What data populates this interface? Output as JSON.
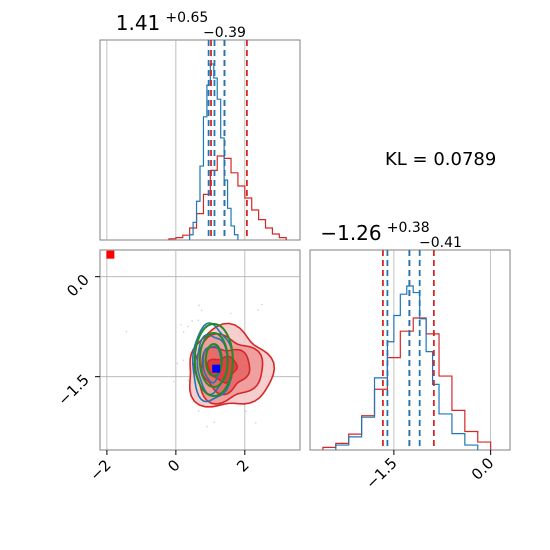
{
  "chart_data": [
    {
      "type": "histogram",
      "panel": "param-1-marginal",
      "title": {
        "median": "1.41",
        "plus": "+0.65",
        "minus": "−0.39"
      },
      "xlim": [
        -2.2,
        3.6
      ],
      "grid": true,
      "series": [
        {
          "name": "",
          "color": "#d62728",
          "quantiles": [
            1.02,
            1.41,
            2.06
          ],
          "bins": [
            -0.2,
            0.0,
            0.2,
            0.4,
            0.6,
            0.8,
            1.0,
            1.2,
            1.4,
            1.6,
            1.8,
            2.0,
            2.2,
            2.4,
            2.6,
            2.8,
            3.0,
            3.2
          ],
          "counts": [
            0.01,
            0.02,
            0.04,
            0.1,
            0.22,
            0.38,
            0.58,
            0.7,
            0.68,
            0.56,
            0.45,
            0.35,
            0.25,
            0.17,
            0.1,
            0.05,
            0.02
          ]
        },
        {
          "name": "",
          "color": "#1f77b4",
          "quantiles": [
            0.95,
            1.12,
            1.41
          ],
          "bins": [
            0.4,
            0.5,
            0.6,
            0.7,
            0.8,
            0.9,
            1.0,
            1.1,
            1.2,
            1.3,
            1.4,
            1.5,
            1.6,
            1.7,
            1.8
          ],
          "counts": [
            0.03,
            0.1,
            0.22,
            0.42,
            0.7,
            0.88,
            1.0,
            0.92,
            0.8,
            0.58,
            0.34,
            0.18,
            0.08,
            0.03
          ]
        }
      ]
    },
    {
      "type": "histogram",
      "panel": "param-2-marginal",
      "title": {
        "median": "−1.26",
        "plus": "+0.38",
        "minus": "−0.41"
      },
      "xlim": [
        -2.8,
        0.3
      ],
      "xticks": [
        -1.5,
        0.0
      ],
      "xticklabels": [
        "−1.5",
        "0.0"
      ],
      "grid": true,
      "series": [
        {
          "name": "",
          "color": "#d62728",
          "quantiles": [
            -1.67,
            -1.26,
            -0.88
          ],
          "bins": [
            -2.6,
            -2.4,
            -2.2,
            -2.0,
            -1.8,
            -1.6,
            -1.4,
            -1.2,
            -1.0,
            -0.8,
            -0.6,
            -0.4,
            -0.2,
            0.0
          ],
          "counts": [
            0.02,
            0.05,
            0.12,
            0.26,
            0.46,
            0.7,
            0.9,
            1.0,
            0.88,
            0.56,
            0.3,
            0.14,
            0.06
          ]
        },
        {
          "name": "",
          "color": "#1f77b4",
          "quantiles": [
            -1.6,
            -1.26,
            -1.1
          ],
          "bins": [
            -2.4,
            -2.2,
            -2.0,
            -1.8,
            -1.6,
            -1.5,
            -1.4,
            -1.3,
            -1.2,
            -1.1,
            -1.0,
            -0.9,
            -0.8,
            -0.6,
            -0.4,
            -0.2
          ],
          "counts": [
            0.03,
            0.08,
            0.2,
            0.44,
            0.66,
            0.82,
            0.95,
            1.0,
            0.96,
            0.8,
            0.6,
            0.4,
            0.22,
            0.1,
            0.03
          ]
        }
      ]
    },
    {
      "type": "contour",
      "panel": "joint",
      "xlim": [
        -2.2,
        3.6
      ],
      "ylim": [
        -2.6,
        0.4
      ],
      "xticks": [
        -2,
        0,
        2
      ],
      "xticklabels": [
        "−2",
        "0",
        "2"
      ],
      "yticks": [
        0.0,
        -1.5
      ],
      "yticklabels": [
        "0.0",
        "−1.5"
      ],
      "grid": true,
      "red_center": [
        1.3,
        -1.35
      ],
      "blue_center": [
        1.05,
        -1.3
      ],
      "green_center": [
        1.1,
        -1.25
      ],
      "truth_marker": {
        "color": "#0000ff",
        "x": 1.17,
        "y": -1.38
      },
      "reference_marker": {
        "color": "#ff0000",
        "x": -1.9,
        "y": 0.33
      }
    }
  ],
  "annotation": {
    "kl_text": "KL = 0.0789"
  },
  "colors": {
    "red": "#d62728",
    "blue": "#1f77b4",
    "green": "#228b22",
    "axis": "#808080",
    "grid": "#b0b0b0"
  }
}
